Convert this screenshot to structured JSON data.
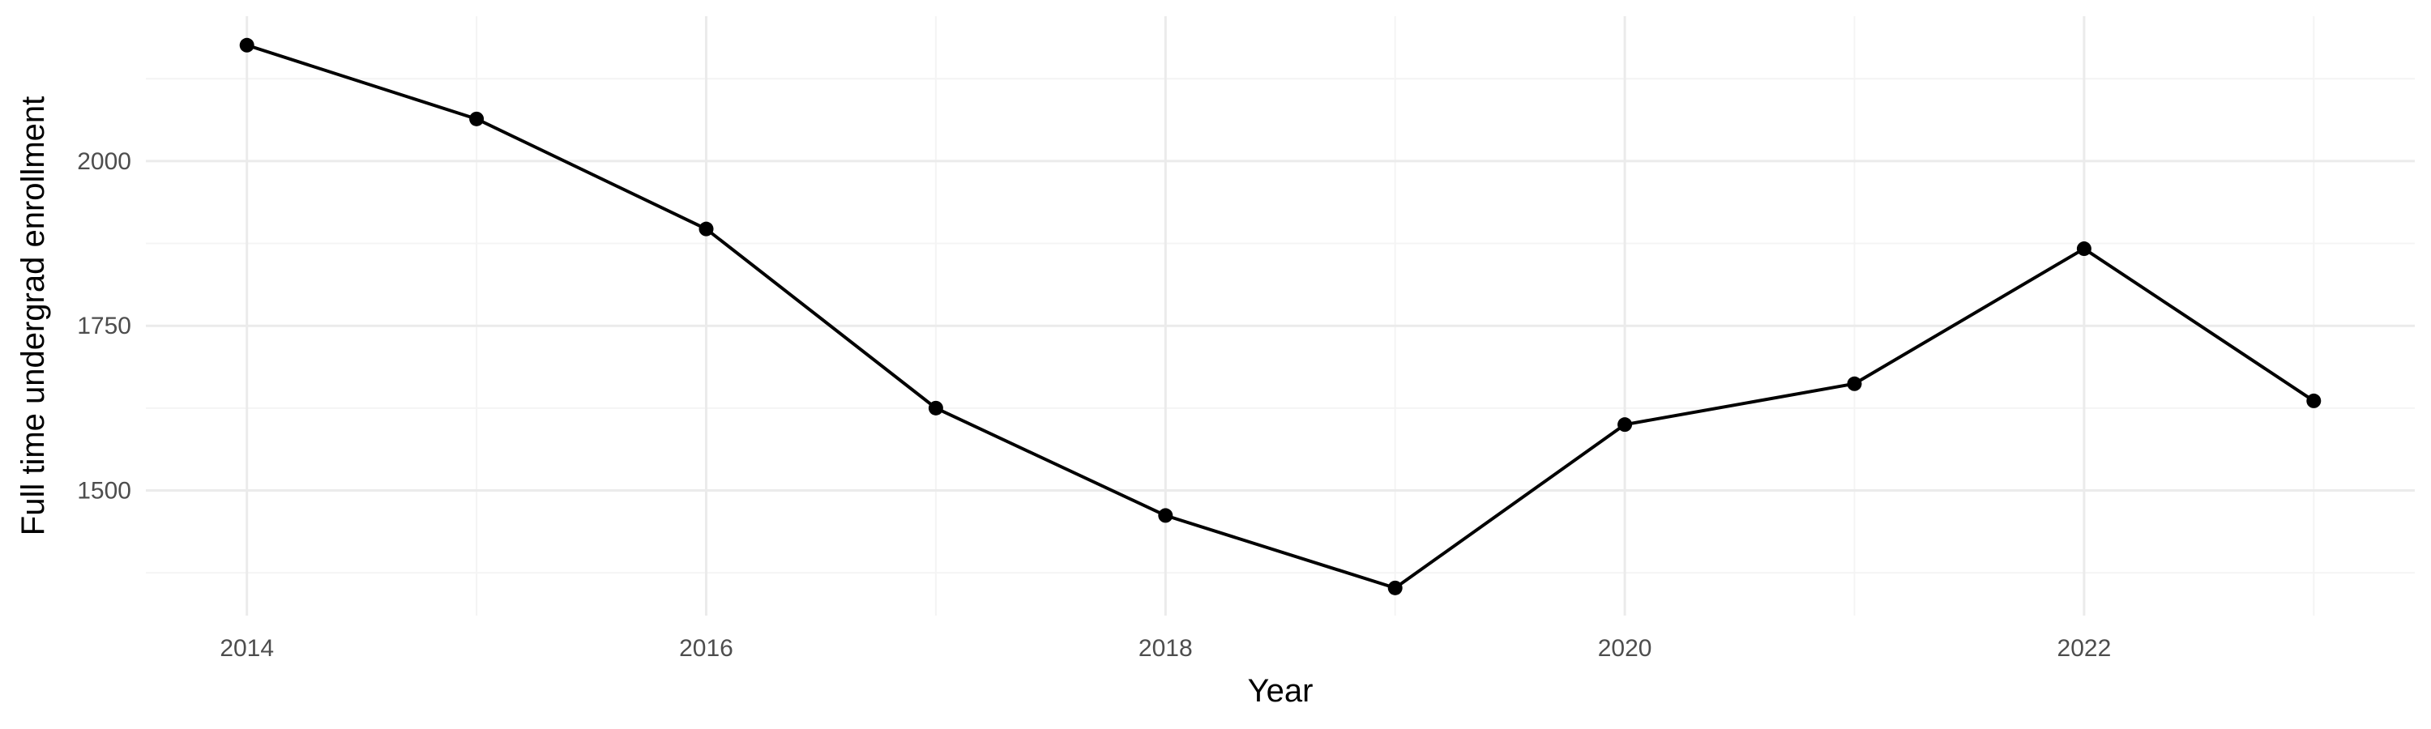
{
  "chart_data": {
    "type": "line",
    "title": "",
    "xlabel": "Year",
    "ylabel": "Full time undergrad enrollment",
    "x": [
      2014,
      2015,
      2016,
      2017,
      2018,
      2019,
      2020,
      2021,
      2022,
      2023
    ],
    "series": [
      {
        "values": [
          2176,
          2064,
          1897,
          1625,
          1462,
          1352,
          1600,
          1662,
          1867,
          1636
        ]
      }
    ],
    "xlim": [
      2013.56,
      2023.44
    ],
    "ylim": [
      1310,
      2220
    ],
    "x_ticks": [
      2014,
      2016,
      2018,
      2020,
      2022
    ],
    "x_tick_labels": [
      "2014",
      "2016",
      "2018",
      "2020",
      "2022"
    ],
    "y_ticks": [
      1500,
      1750,
      2000
    ],
    "y_tick_labels": [
      "1500",
      "1750",
      "2000"
    ],
    "grid": true,
    "legend": "none",
    "colors": {
      "line": "#000000",
      "grid": "#ebebeb",
      "tick_text": "#4d4d4d"
    }
  }
}
